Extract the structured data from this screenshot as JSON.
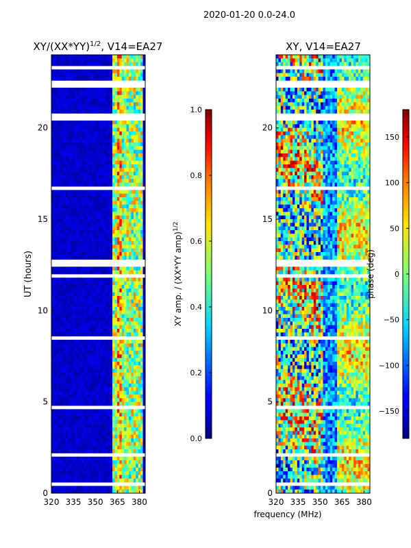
{
  "chart_data": [
    {
      "type": "heatmap",
      "suptitle": "2020-01-20 0.0-24.0",
      "title": "XY/(XX*YY)",
      "title_sup": "1/2",
      "title_tail": ", V14=EA27",
      "xlabel": "",
      "ylabel": "UT (hours)",
      "xlim": [
        320,
        384
      ],
      "ylim": [
        0,
        24
      ],
      "xticks": [
        320,
        335,
        350,
        365,
        380
      ],
      "yticks": [
        0,
        5,
        10,
        15,
        20
      ],
      "colorbar": {
        "label": "XY amp. / (XX*YY amp)",
        "label_sup": "1/2",
        "range": [
          0.0,
          1.0
        ],
        "ticks": [
          "0.0",
          "0.2",
          "0.4",
          "0.6",
          "0.8",
          "1.0"
        ],
        "tick_values": [
          0.0,
          0.2,
          0.4,
          0.6,
          0.8,
          1.0
        ]
      },
      "active_band_mhz": [
        362,
        382
      ],
      "gap_hours": [
        0.45,
        2.05,
        4.65,
        8.4,
        8.55,
        11.9,
        12.45,
        12.65,
        16.75,
        20.5,
        20.7,
        22.25,
        22.45,
        23.3
      ]
    },
    {
      "type": "heatmap",
      "title": "XY, V14=EA27",
      "xlabel": "frequency (MHz)",
      "ylabel": "",
      "xlim": [
        320,
        384
      ],
      "ylim": [
        0,
        24
      ],
      "xticks": [
        320,
        335,
        350,
        365,
        380
      ],
      "yticks": [
        0,
        5,
        10,
        15,
        20
      ],
      "colorbar": {
        "label": "phase (deg)",
        "range": [
          -180,
          180
        ],
        "ticks": [
          "−150",
          "−100",
          "−50",
          "0",
          "50",
          "100",
          "150"
        ],
        "tick_values": [
          -150,
          -100,
          -50,
          0,
          50,
          100,
          150
        ]
      },
      "gap_hours": [
        0.45,
        2.05,
        4.65,
        8.4,
        8.55,
        11.9,
        12.45,
        12.65,
        16.75,
        20.5,
        20.7,
        22.25,
        22.45,
        23.3
      ]
    }
  ]
}
